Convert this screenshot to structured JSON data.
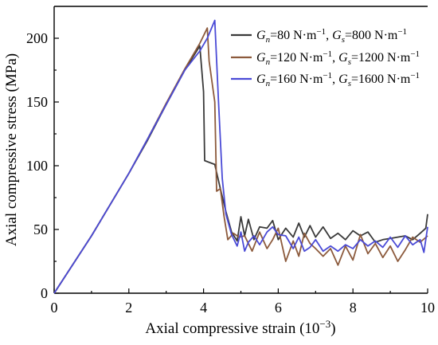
{
  "chart_data": {
    "type": "line",
    "xlabel": "Axial compressive strain (10",
    "xlabel_sup": "−3",
    "xlabel_end": ")",
    "ylabel": "Axial compressive stress (MPa)",
    "xlim": [
      0,
      10
    ],
    "ylim": [
      0,
      225
    ],
    "xticks": [
      0,
      2,
      4,
      6,
      8,
      10
    ],
    "yticks": [
      0,
      50,
      100,
      150,
      200
    ],
    "grid": false,
    "legend_position": "top-right",
    "series": [
      {
        "legend": {
          "gn": "80",
          "gs": "800",
          "gap": "  "
        },
        "color": "#3a3a3a",
        "x": [
          0,
          1.0,
          2.0,
          2.5,
          3.0,
          3.5,
          3.9,
          4.0,
          4.03,
          4.3,
          4.45,
          4.6,
          4.75,
          4.9,
          5.0,
          5.1,
          5.2,
          5.35,
          5.5,
          5.7,
          5.85,
          6.0,
          6.2,
          6.4,
          6.55,
          6.7,
          6.85,
          7.0,
          7.2,
          7.4,
          7.6,
          7.8,
          8.0,
          8.2,
          8.4,
          8.6,
          8.8,
          9.0,
          9.2,
          9.4,
          9.6,
          9.8,
          9.95,
          10.0
        ],
        "y": [
          0,
          45,
          94,
          120,
          148,
          175,
          194,
          158,
          104,
          101,
          82,
          64,
          48,
          41,
          60,
          45,
          58,
          42,
          52,
          51,
          57,
          42,
          51,
          44,
          55,
          44,
          53,
          44,
          52,
          43,
          47,
          42,
          49,
          45,
          48,
          40,
          42,
          43,
          44,
          45,
          42,
          47,
          51,
          62
        ]
      },
      {
        "legend": {
          "gn": "120",
          "gs": "1200",
          "gap": ""
        },
        "color": "#8c5a3c",
        "x": [
          0,
          1.0,
          2.0,
          2.5,
          3.0,
          3.5,
          3.9,
          4.1,
          4.15,
          4.3,
          4.35,
          4.45,
          4.55,
          4.65,
          4.8,
          4.95,
          5.1,
          5.3,
          5.5,
          5.7,
          5.85,
          6.0,
          6.2,
          6.4,
          6.55,
          6.7,
          6.85,
          7.0,
          7.2,
          7.4,
          7.6,
          7.8,
          8.0,
          8.2,
          8.4,
          8.6,
          8.8,
          9.0,
          9.2,
          9.4,
          9.6,
          9.8,
          10.0
        ],
        "y": [
          0,
          45,
          94,
          121,
          149,
          176,
          196,
          208,
          182,
          150,
          80,
          82,
          60,
          42,
          47,
          44,
          45,
          33,
          48,
          35,
          42,
          51,
          25,
          41,
          29,
          47,
          39,
          35,
          29,
          35,
          22,
          37,
          26,
          46,
          31,
          39,
          28,
          37,
          25,
          34,
          44,
          40,
          45
        ]
      },
      {
        "legend": {
          "gn": "160",
          "gs": "1600",
          "gap": ""
        },
        "color": "#4a4ad6",
        "x": [
          0,
          1.0,
          2.0,
          2.5,
          3.0,
          3.5,
          3.9,
          4.1,
          4.3,
          4.4,
          4.5,
          4.6,
          4.75,
          4.9,
          5.0,
          5.1,
          5.2,
          5.35,
          5.5,
          5.7,
          5.85,
          6.0,
          6.2,
          6.4,
          6.55,
          6.7,
          6.85,
          7.0,
          7.2,
          7.4,
          7.6,
          7.8,
          8.0,
          8.2,
          8.4,
          8.6,
          8.8,
          9.0,
          9.2,
          9.4,
          9.6,
          9.8,
          9.9,
          10.0
        ],
        "y": [
          0,
          45,
          94,
          121,
          148,
          175,
          190,
          200,
          214,
          150,
          90,
          62,
          46,
          37,
          48,
          33,
          40,
          45,
          38,
          48,
          52,
          46,
          45,
          35,
          44,
          33,
          36,
          42,
          33,
          37,
          33,
          38,
          35,
          42,
          37,
          41,
          36,
          44,
          36,
          45,
          38,
          42,
          32,
          52
        ]
      }
    ]
  }
}
